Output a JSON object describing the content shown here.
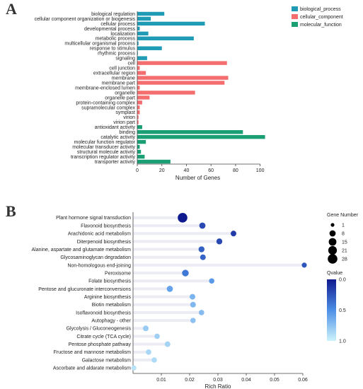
{
  "panel_a": {
    "letter": "A"
  },
  "panel_b": {
    "letter": "B"
  },
  "chart_data": [
    {
      "type": "bar",
      "orientation": "horizontal",
      "title": "",
      "xlabel": "Number of Genes",
      "ylabel": "",
      "xlim": [
        0,
        110
      ],
      "xticks": [
        0,
        20,
        40,
        60,
        80,
        100
      ],
      "legend_position": "top-right",
      "grid": false,
      "series": [
        {
          "name": "biological_process",
          "color": "#1f9bb5"
        },
        {
          "name": "cellular_component",
          "color": "#f46d6f"
        },
        {
          "name": "molecular_function",
          "color": "#1a9e74"
        }
      ],
      "categories": [
        {
          "label": "biological regulation",
          "value": 22,
          "series": 0
        },
        {
          "label": "cellular component organization or biogenesis",
          "value": 11,
          "series": 0
        },
        {
          "label": "cellular process",
          "value": 55,
          "series": 0
        },
        {
          "label": "developmental process",
          "value": 2,
          "series": 0
        },
        {
          "label": "localization",
          "value": 9,
          "series": 0
        },
        {
          "label": "metabolic process",
          "value": 46,
          "series": 0
        },
        {
          "label": "multicellular organismal process",
          "value": 1,
          "series": 0
        },
        {
          "label": "response to stimulus",
          "value": 20,
          "series": 0
        },
        {
          "label": "rhythmic process",
          "value": 0.5,
          "series": 0
        },
        {
          "label": "signaling",
          "value": 8,
          "series": 0
        },
        {
          "label": "cell",
          "value": 73,
          "series": 1
        },
        {
          "label": "cell junction",
          "value": 2,
          "series": 1
        },
        {
          "label": "extracellular region",
          "value": 7,
          "series": 1
        },
        {
          "label": "membrane",
          "value": 74,
          "series": 1
        },
        {
          "label": "membrane part",
          "value": 71,
          "series": 1
        },
        {
          "label": "membrane-enclosed lumen",
          "value": 2,
          "series": 1
        },
        {
          "label": "organelle",
          "value": 47,
          "series": 1
        },
        {
          "label": "organelle part",
          "value": 10,
          "series": 1
        },
        {
          "label": "protein-containing complex",
          "value": 4,
          "series": 1
        },
        {
          "label": "supramolecular complex",
          "value": 2,
          "series": 1
        },
        {
          "label": "symplast",
          "value": 2,
          "series": 1
        },
        {
          "label": "virion",
          "value": 1,
          "series": 1
        },
        {
          "label": "virion part",
          "value": 1,
          "series": 1
        },
        {
          "label": "antioxidant activity",
          "value": 4,
          "series": 2
        },
        {
          "label": "binding",
          "value": 86,
          "series": 2
        },
        {
          "label": "catalytic activity",
          "value": 104,
          "series": 2
        },
        {
          "label": "molecular function regulator",
          "value": 7,
          "series": 2
        },
        {
          "label": "molecular transducer activity",
          "value": 2,
          "series": 2
        },
        {
          "label": "structural molecule activity",
          "value": 3,
          "series": 2
        },
        {
          "label": "transcription regulator activity",
          "value": 6,
          "series": 2
        },
        {
          "label": "transporter activity",
          "value": 27,
          "series": 2
        }
      ]
    },
    {
      "type": "scatter",
      "title": "",
      "xlabel": "Rich Ratio",
      "ylabel": "",
      "xlim": [
        0,
        0.06
      ],
      "xticks": [
        "0.01",
        "0.02",
        "0.03",
        "0.04",
        "0.05",
        "0.06"
      ],
      "grid": true,
      "size_legend": {
        "title": "Gene Number",
        "values": [
          1,
          8,
          15,
          21,
          28
        ]
      },
      "color_legend": {
        "title": "Qvalue",
        "ticks": [
          "0.0",
          "0.5",
          "1.0"
        ],
        "high_color": "#101a8f",
        "low_color": "#cdf3fb"
      },
      "points": [
        {
          "label": "Plant hormone signal transduction",
          "x": 0.0175,
          "genes": 28,
          "q": 0.0
        },
        {
          "label": "Flavonoid biosynthesis",
          "x": 0.0245,
          "genes": 8,
          "q": 0.2
        },
        {
          "label": "Arachidonic acid metabolism",
          "x": 0.0355,
          "genes": 6,
          "q": 0.15
        },
        {
          "label": "Diterpenoid biosynthesis",
          "x": 0.0305,
          "genes": 7,
          "q": 0.2
        },
        {
          "label": "Alanine, aspartate and glutamate metabolism",
          "x": 0.0242,
          "genes": 7,
          "q": 0.3
        },
        {
          "label": "Glycosaminoglycan degradation",
          "x": 0.0247,
          "genes": 6,
          "q": 0.32
        },
        {
          "label": "Non-homologous end-joining",
          "x": 0.0605,
          "genes": 4,
          "q": 0.25
        },
        {
          "label": "Peroxisome",
          "x": 0.0185,
          "genes": 10,
          "q": 0.4
        },
        {
          "label": "Folate biosynthesis",
          "x": 0.0278,
          "genes": 5,
          "q": 0.55
        },
        {
          "label": "Pentose and glucuronate interconversions",
          "x": 0.013,
          "genes": 8,
          "q": 0.6
        },
        {
          "label": "Arginine biosynthesis",
          "x": 0.021,
          "genes": 6,
          "q": 0.68
        },
        {
          "label": "Biotin metabolism",
          "x": 0.0212,
          "genes": 6,
          "q": 0.7
        },
        {
          "label": "Isoflavonoid biosynthesis",
          "x": 0.0242,
          "genes": 5,
          "q": 0.72
        },
        {
          "label": "Autophagy - other",
          "x": 0.0212,
          "genes": 5,
          "q": 0.75
        },
        {
          "label": "Glycolysis / Gluconeogenesis",
          "x": 0.0045,
          "genes": 6,
          "q": 0.8
        },
        {
          "label": "Citrate cycle (TCA cycle)",
          "x": 0.0085,
          "genes": 5,
          "q": 0.82
        },
        {
          "label": "Pentose phosphate pathway",
          "x": 0.0122,
          "genes": 6,
          "q": 0.84
        },
        {
          "label": "Fructose and mannose metabolism",
          "x": 0.0055,
          "genes": 5,
          "q": 0.86
        },
        {
          "label": "Galactose metabolism",
          "x": 0.0075,
          "genes": 5,
          "q": 0.88
        },
        {
          "label": "Ascorbate and aldarate metabolism",
          "x": 0.0003,
          "genes": 4,
          "q": 0.92
        }
      ]
    }
  ]
}
